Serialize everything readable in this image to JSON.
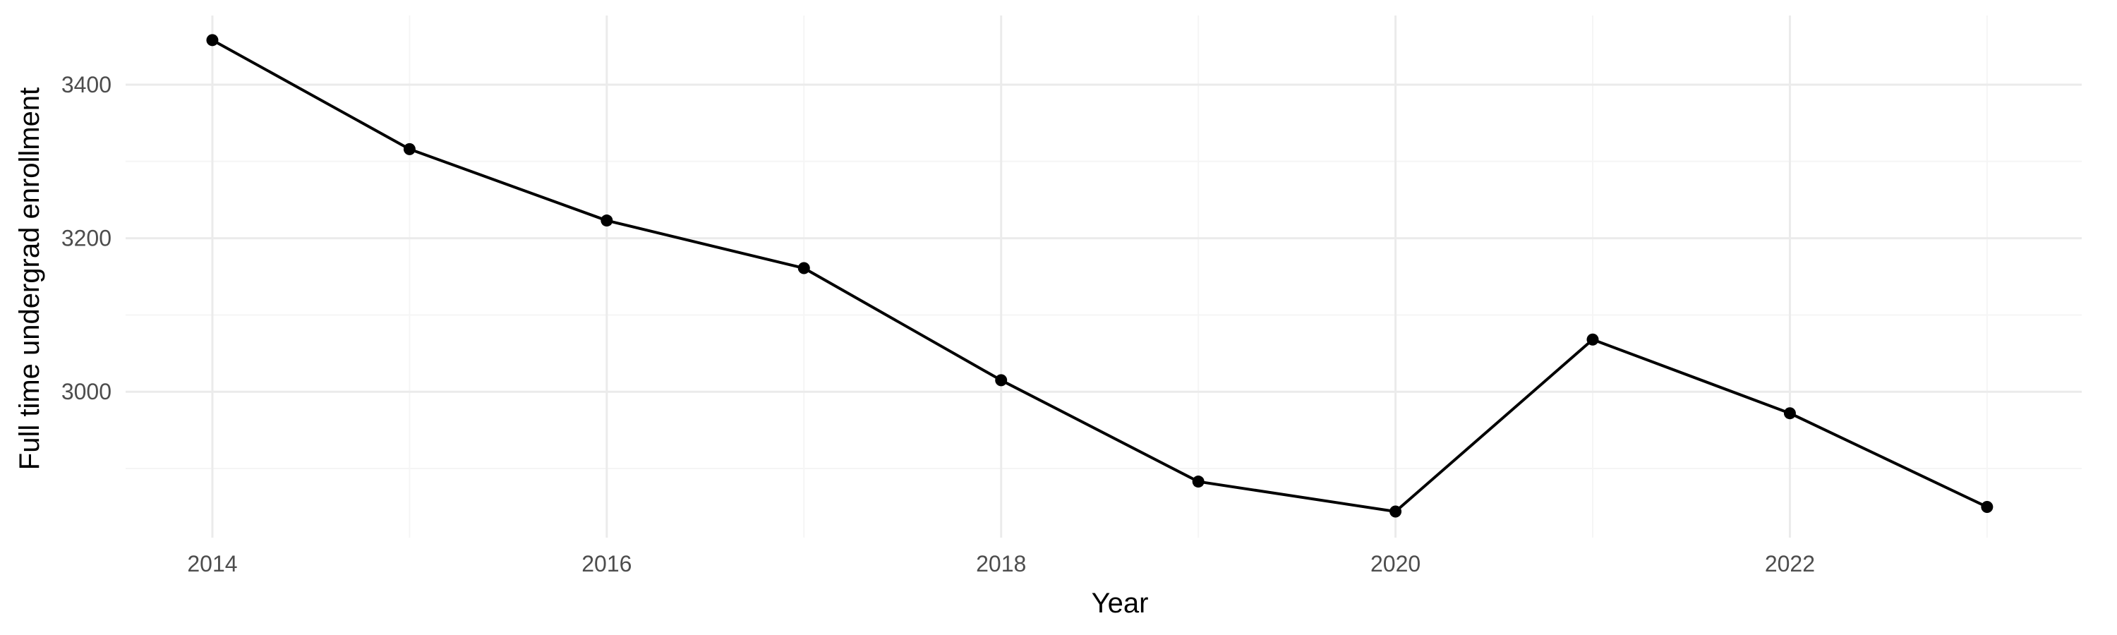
{
  "chart_data": {
    "type": "line",
    "title": "",
    "xlabel": "Year",
    "ylabel": "Full time undergrad enrollment",
    "x": [
      2014,
      2015,
      2016,
      2017,
      2018,
      2019,
      2020,
      2021,
      2022,
      2023
    ],
    "series": [
      {
        "values": [
          3458,
          3316,
          3223,
          3161,
          3015,
          2883,
          2844,
          3068,
          2972,
          2850
        ]
      }
    ],
    "xlim": [
      2013.56,
      2023.48
    ],
    "ylim": [
      2810,
      3490
    ],
    "x_ticks": [
      2014,
      2016,
      2018,
      2020,
      2022
    ],
    "x_tick_labels": [
      "2014",
      "2016",
      "2018",
      "2020",
      "2022"
    ],
    "y_ticks": [
      3000,
      3200,
      3400
    ],
    "y_tick_labels": [
      "3000",
      "3200",
      "3400"
    ],
    "grid": true,
    "legend": "none",
    "colors": {
      "line": "#000000",
      "grid": "#ebebeb",
      "tick_text": "#4d4d4d"
    }
  }
}
